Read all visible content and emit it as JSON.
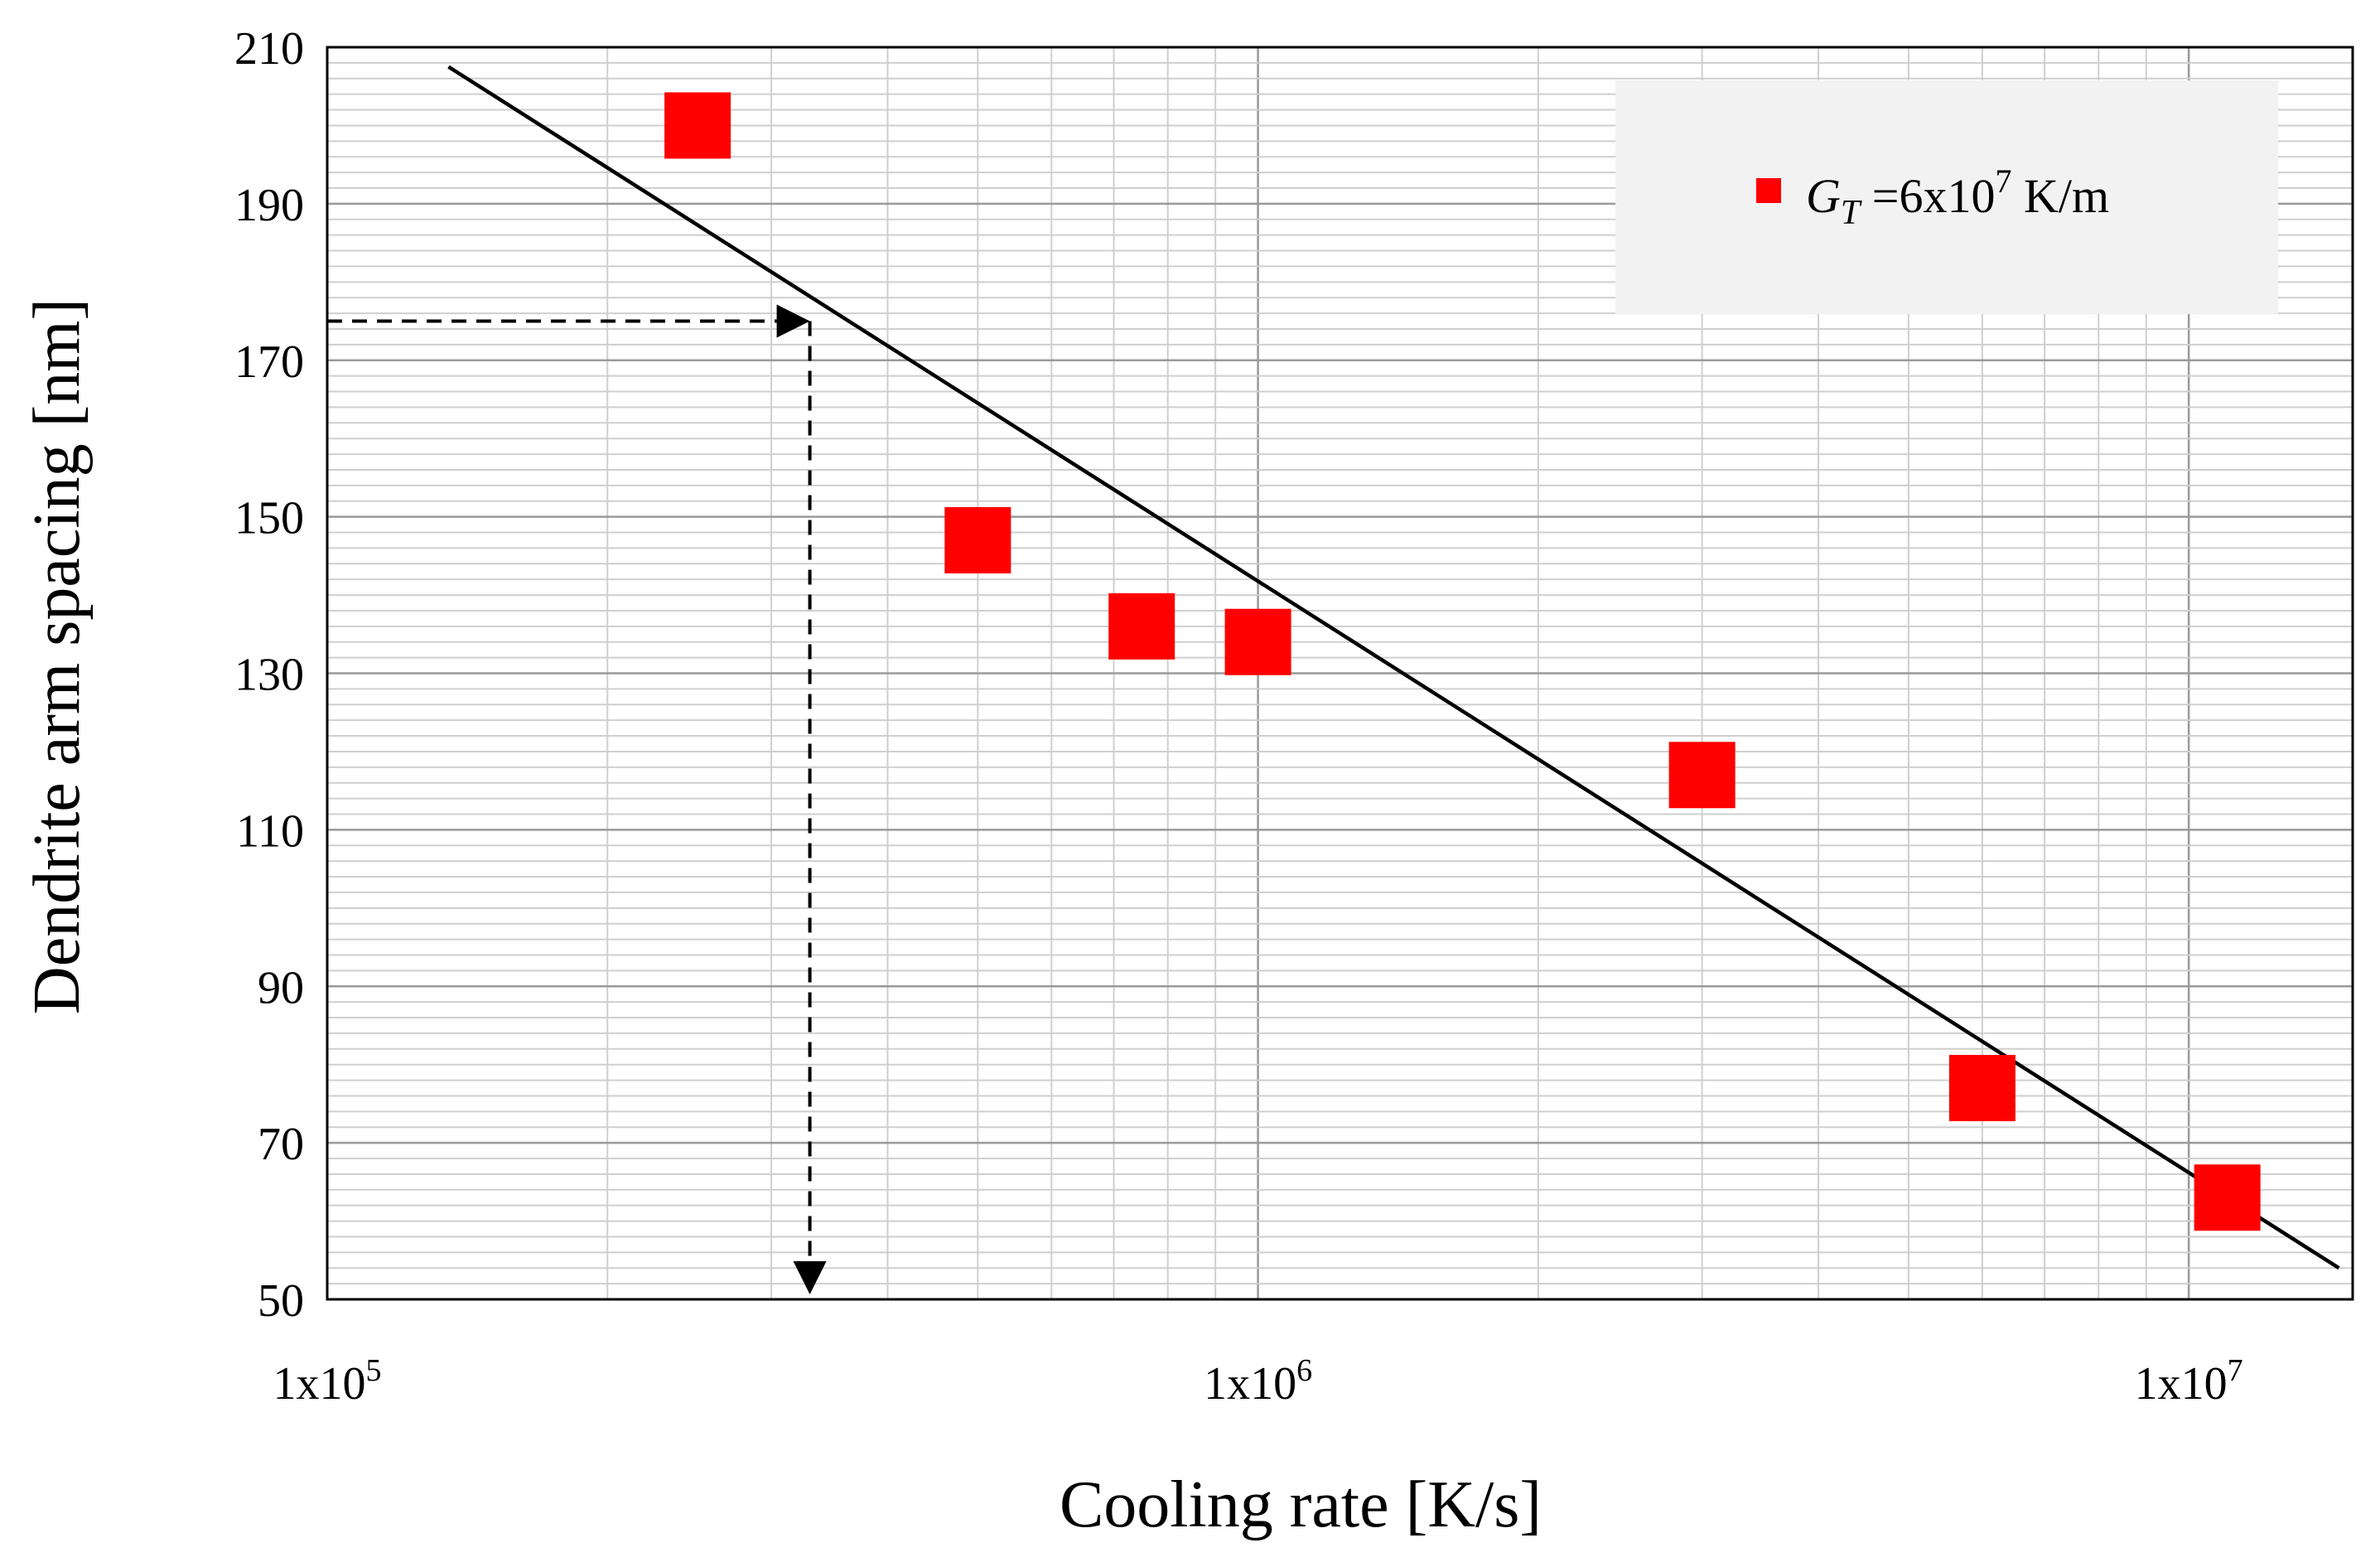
{
  "chart_data": {
    "type": "scatter",
    "xscale": "log",
    "xlim": [
      100000,
      15000000
    ],
    "ylim": [
      50,
      210
    ],
    "xlabel": "Cooling rate [K/s]",
    "ylabel": "Dendrite arm spacing [nm]",
    "x_ticks": [
      {
        "value": 100000,
        "mantissa": "1x10",
        "exponent": "5"
      },
      {
        "value": 1000000,
        "mantissa": "1x10",
        "exponent": "6"
      },
      {
        "value": 10000000,
        "mantissa": "1x10",
        "exponent": "7"
      }
    ],
    "y_ticks": [
      50,
      70,
      90,
      110,
      130,
      150,
      170,
      190,
      210
    ],
    "grid": true,
    "series": [
      {
        "name": "G_T =6x10^7 K/m",
        "marker": "square",
        "color": "#ff0000",
        "points": [
          {
            "x": 250000,
            "y": 200
          },
          {
            "x": 500000,
            "y": 147
          },
          {
            "x": 750000,
            "y": 136
          },
          {
            "x": 1000000,
            "y": 134
          },
          {
            "x": 3000000,
            "y": 117
          },
          {
            "x": 6000000,
            "y": 77
          },
          {
            "x": 11000000,
            "y": 63
          }
        ]
      }
    ],
    "trendline": {
      "color": "#000000",
      "points": [
        {
          "x": 135000,
          "y": 207.5
        },
        {
          "x": 14500000,
          "y": 54
        }
      ]
    },
    "annotation": {
      "style": "dashed-arrows",
      "x": 330000,
      "y": 175
    },
    "legend": {
      "position": "top-right",
      "label_symbol": "G",
      "label_subscript": "T",
      "label_middle": " =6x10",
      "label_superscript": "7",
      "label_unit": " K/m"
    }
  }
}
